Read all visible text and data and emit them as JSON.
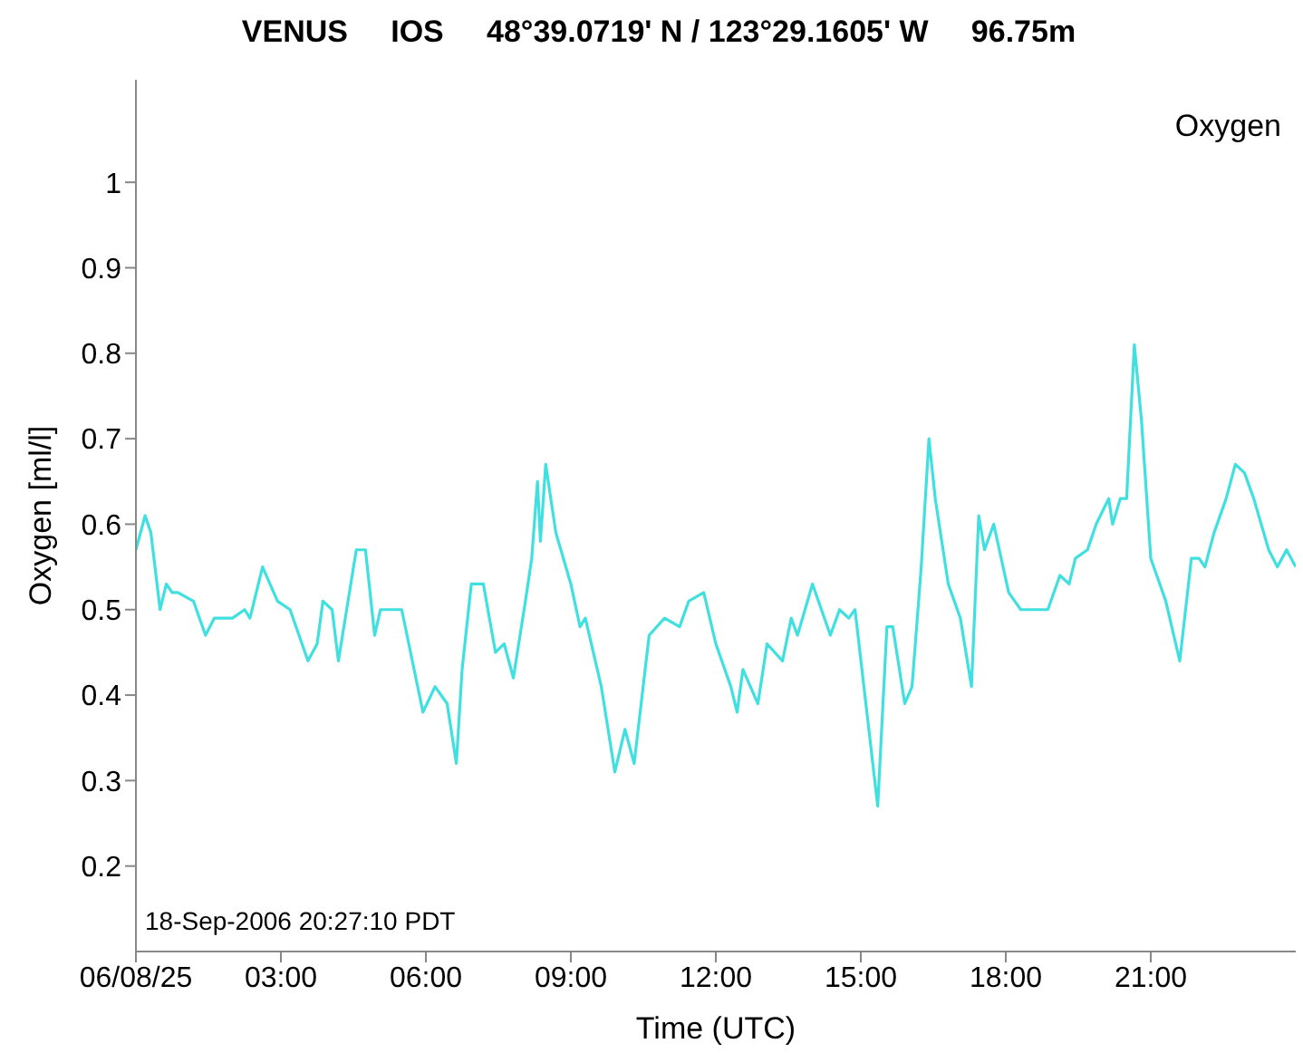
{
  "chart_data": {
    "type": "line",
    "title": "VENUS     IOS     48°39.0719' N / 123°29.1605' W     96.75m",
    "xlabel": "Time (UTC)",
    "ylabel": "Oxygen [ml/l]",
    "annotations": [
      "Oxygen",
      "18-Sep-2006 20:27:10 PDT"
    ],
    "xlim": [
      0,
      24
    ],
    "xticks": [
      {
        "value": 0,
        "label": "06/08/25"
      },
      {
        "value": 3,
        "label": "03:00"
      },
      {
        "value": 6,
        "label": "06:00"
      },
      {
        "value": 9,
        "label": "09:00"
      },
      {
        "value": 12,
        "label": "12:00"
      },
      {
        "value": 15,
        "label": "15:00"
      },
      {
        "value": 18,
        "label": "18:00"
      },
      {
        "value": 21,
        "label": "21:00"
      }
    ],
    "ylim": [
      0.1,
      1.12
    ],
    "yticks": [
      0.2,
      0.3,
      0.4,
      0.5,
      0.6,
      0.7,
      0.8,
      0.9,
      1
    ],
    "grid": false,
    "legend": false,
    "marker": "none",
    "line_style": "solid",
    "series": [
      {
        "color": "#40e0e0",
        "x": [
          0,
          0.19,
          0.31,
          0.5,
          0.63,
          0.75,
          0.87,
          1.19,
          1.44,
          1.62,
          2.0,
          2.25,
          2.36,
          2.62,
          2.93,
          3.19,
          3.56,
          3.75,
          3.87,
          4.06,
          4.19,
          4.56,
          4.75,
          4.94,
          5.06,
          5.5,
          5.94,
          6.19,
          6.44,
          6.63,
          6.75,
          6.94,
          7.19,
          7.44,
          7.62,
          7.81,
          8.06,
          8.19,
          8.31,
          8.37,
          8.48,
          8.69,
          9.0,
          9.19,
          9.3,
          9.63,
          9.91,
          10.12,
          10.31,
          10.62,
          10.94,
          11.25,
          11.44,
          11.75,
          12.0,
          12.31,
          12.44,
          12.56,
          12.87,
          13.06,
          13.38,
          13.56,
          13.69,
          14.0,
          14.37,
          14.56,
          14.75,
          14.88,
          15.35,
          15.54,
          15.66,
          15.91,
          16.06,
          16.25,
          16.41,
          16.54,
          16.81,
          17.06,
          17.29,
          17.44,
          17.56,
          17.75,
          18.06,
          18.31,
          18.5,
          18.87,
          19.12,
          19.31,
          19.44,
          19.69,
          19.87,
          20.13,
          20.21,
          20.37,
          20.5,
          20.66,
          20.81,
          21.0,
          21.31,
          21.6,
          21.84,
          22.0,
          22.12,
          22.31,
          22.56,
          22.75,
          22.94,
          23.13,
          23.44,
          23.62,
          23.81,
          24.0
        ],
        "values": [
          0.57,
          0.61,
          0.59,
          0.5,
          0.53,
          0.52,
          0.52,
          0.51,
          0.47,
          0.49,
          0.49,
          0.5,
          0.49,
          0.55,
          0.51,
          0.5,
          0.44,
          0.46,
          0.51,
          0.5,
          0.44,
          0.57,
          0.57,
          0.47,
          0.5,
          0.5,
          0.38,
          0.41,
          0.39,
          0.32,
          0.43,
          0.53,
          0.53,
          0.45,
          0.46,
          0.42,
          0.51,
          0.56,
          0.65,
          0.58,
          0.67,
          0.59,
          0.53,
          0.48,
          0.49,
          0.41,
          0.31,
          0.36,
          0.32,
          0.47,
          0.49,
          0.48,
          0.51,
          0.52,
          0.46,
          0.41,
          0.38,
          0.43,
          0.39,
          0.46,
          0.44,
          0.49,
          0.47,
          0.53,
          0.47,
          0.5,
          0.49,
          0.5,
          0.27,
          0.48,
          0.48,
          0.39,
          0.41,
          0.55,
          0.7,
          0.63,
          0.53,
          0.49,
          0.41,
          0.61,
          0.57,
          0.6,
          0.52,
          0.5,
          0.5,
          0.5,
          0.54,
          0.53,
          0.56,
          0.57,
          0.6,
          0.63,
          0.6,
          0.63,
          0.63,
          0.81,
          0.72,
          0.56,
          0.51,
          0.44,
          0.56,
          0.56,
          0.55,
          0.59,
          0.63,
          0.67,
          0.66,
          0.63,
          0.57,
          0.55,
          0.57,
          0.55
        ]
      }
    ]
  }
}
